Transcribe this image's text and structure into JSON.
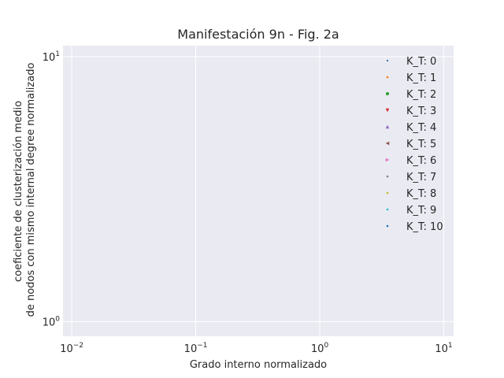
{
  "chart_data": {
    "type": "scatter",
    "title": "Manifestación 9n - Fig. 2a",
    "xlabel": "Grado interno normalizado",
    "ylabel_lines": [
      "coeficiente de clusterización medio",
      "de nodos con mismo internal degree normalizado"
    ],
    "x_scale": "log",
    "y_scale": "log",
    "xlim": [
      0.0085,
      12
    ],
    "ylim": [
      0.88,
      11
    ],
    "x_ticks": [
      {
        "base": "10",
        "exp": "−2",
        "value": 0.01
      },
      {
        "base": "10",
        "exp": "−1",
        "value": 0.1
      },
      {
        "base": "10",
        "exp": "0",
        "value": 1
      },
      {
        "base": "10",
        "exp": "1",
        "value": 10
      }
    ],
    "y_ticks": [
      {
        "base": "10",
        "exp": "0",
        "value": 1
      },
      {
        "base": "10",
        "exp": "1",
        "value": 10
      }
    ],
    "grid": true,
    "legend_position": "top-right",
    "series": [
      {
        "name": "K_T: 0",
        "color": "#1f77b4",
        "marker": "point",
        "points": []
      },
      {
        "name": "K_T: 1",
        "color": "#ff7f0e",
        "marker": "pixel",
        "points": []
      },
      {
        "name": "K_T: 2",
        "color": "#2ca02c",
        "marker": "circle",
        "points": []
      },
      {
        "name": "K_T: 3",
        "color": "#d62728",
        "marker": "triangle-down",
        "points": []
      },
      {
        "name": "K_T: 4",
        "color": "#9467bd",
        "marker": "triangle-up",
        "points": []
      },
      {
        "name": "K_T: 5",
        "color": "#8c564b",
        "marker": "triangle-left",
        "points": []
      },
      {
        "name": "K_T: 6",
        "color": "#e377c2",
        "marker": "triangle-right",
        "points": []
      },
      {
        "name": "K_T: 7",
        "color": "#7f7f7f",
        "marker": "tri-down",
        "points": []
      },
      {
        "name": "K_T: 8",
        "color": "#bcbd22",
        "marker": "tri-up",
        "points": []
      },
      {
        "name": "K_T: 9",
        "color": "#17becf",
        "marker": "tri-left",
        "points": []
      },
      {
        "name": "K_T: 10",
        "color": "#1f77b4",
        "marker": "tri-right",
        "points": []
      }
    ]
  }
}
